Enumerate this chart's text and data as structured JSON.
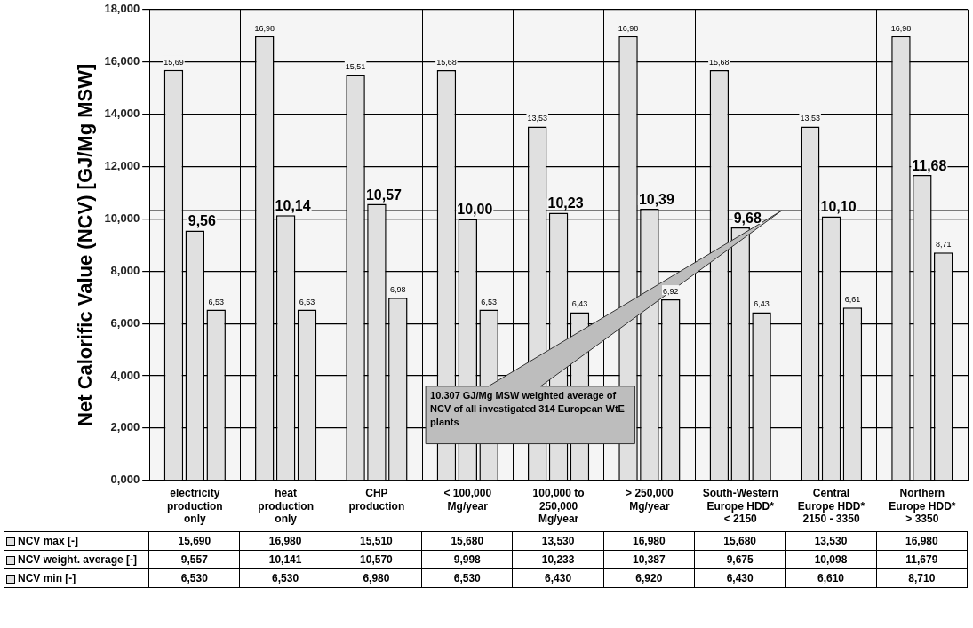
{
  "chart_data": {
    "type": "bar",
    "ylabel": "Net Calorific Value (NCV) [GJ/Mg MSW]",
    "categories": [
      "electricity production only",
      "heat production only",
      "CHP production",
      "< 100,000 Mg/year",
      "100,000 to 250,000 Mg/year",
      "> 250,000 Mg/year",
      "South-Western Europe HDD* < 2150",
      "Central Europe HDD* 2150 - 3350",
      "Northern Europe HDD* > 3350"
    ],
    "series": [
      {
        "name": "NCV max [-]",
        "color": "#e0e0e0",
        "values": [
          15.69,
          16.98,
          15.51,
          15.68,
          13.53,
          16.98,
          15.68,
          13.53,
          16.98
        ],
        "value_labels": [
          "15,690",
          "16,980",
          "15,510",
          "15,680",
          "13,530",
          "16,980",
          "15,680",
          "13,530",
          "16,980"
        ]
      },
      {
        "name": "NCV weight. average [-]",
        "color": "#e0e0e0",
        "values": [
          9.557,
          10.141,
          10.57,
          9.998,
          10.233,
          10.387,
          9.675,
          10.098,
          11.679
        ],
        "value_labels": [
          "9,557",
          "10,141",
          "10,570",
          "9,998",
          "10,233",
          "10,387",
          "9,675",
          "10,098",
          "11,679"
        ]
      },
      {
        "name": "NCV min [-]",
        "color": "#e0e0e0",
        "values": [
          6.53,
          6.53,
          6.98,
          6.53,
          6.43,
          6.92,
          6.43,
          6.61,
          8.71
        ],
        "value_labels": [
          "6,530",
          "6,530",
          "6,980",
          "6,530",
          "6,430",
          "6,920",
          "6,430",
          "6,610",
          "8,710"
        ]
      }
    ],
    "ylim": [
      0,
      18
    ],
    "yticks": [
      {
        "value": 0,
        "label": "0,000"
      },
      {
        "value": 2,
        "label": "2,000"
      },
      {
        "value": 4,
        "label": "4,000"
      },
      {
        "value": 6,
        "label": "6,000"
      },
      {
        "value": 8,
        "label": "8,000"
      },
      {
        "value": 10,
        "label": "10,000"
      },
      {
        "value": 12,
        "label": "12,000"
      },
      {
        "value": 14,
        "label": "14,000"
      },
      {
        "value": 16,
        "label": "16,000"
      },
      {
        "value": 18,
        "label": "18,000"
      }
    ],
    "ref_lines": [
      {
        "axis": "y",
        "value": 10.307,
        "color": "#000000"
      }
    ],
    "annotations": [
      "15,69",
      "16,98",
      "15,51",
      "15,68",
      "13,53",
      "16,98",
      "15,68",
      "13,53",
      "16,98",
      "9,56",
      "10,14",
      "10,57",
      "10,00",
      "10,23",
      "10,39",
      "9,68",
      "10,10",
      "11,68",
      "6,53",
      "6,53",
      "6,98",
      "6,53",
      "6,43",
      "6,92",
      "6,43",
      "6,61",
      "8,71",
      "10.307 GJ/Mg MSW weighted average of NCV of all investigated 314 European WtE plants"
    ],
    "grid": true,
    "legend": "bottom",
    "data_labels": true
  }
}
